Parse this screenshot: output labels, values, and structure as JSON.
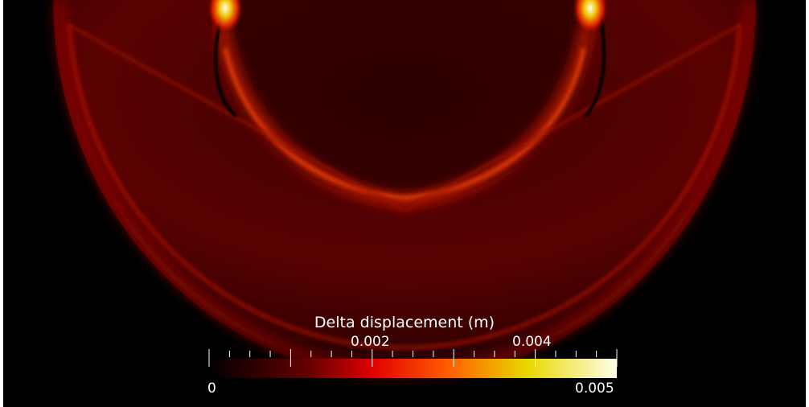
{
  "colorbar": {
    "title": "Delta displacement (m)",
    "range": [
      0,
      0.005
    ],
    "min_label": "0",
    "max_label": "0.005",
    "major_labels": [
      "0.002",
      "0.004"
    ],
    "colormap": "black-body (black-red-yellow-white)"
  },
  "colors": {
    "background": "#000000",
    "ramp": [
      "#000000",
      "#8b0000",
      "#ff2a00",
      "#f0c000",
      "#ffffe8"
    ]
  }
}
